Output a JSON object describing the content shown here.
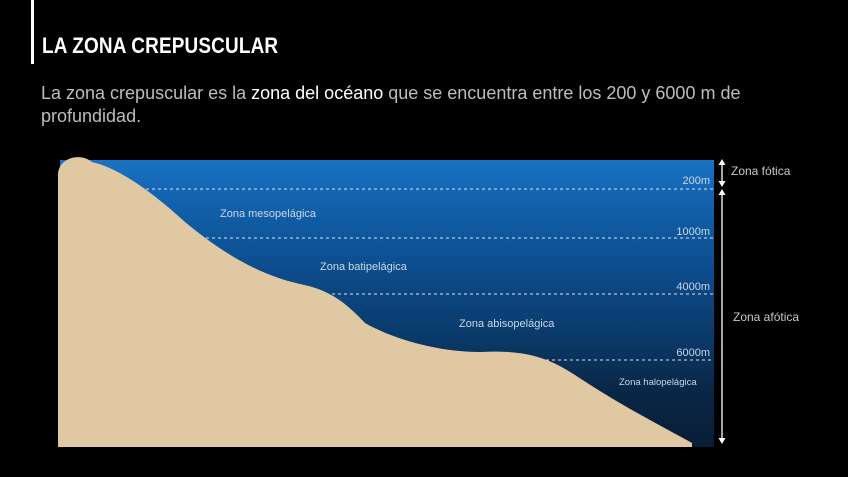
{
  "header": {
    "title": "LA ZONA CREPUSCULAR"
  },
  "intro": {
    "before": "La zona crepuscular es la ",
    "highlight": "zona del océano",
    "after": " que se encuentra entre los 200 y 6000 m de profundidad."
  },
  "diagram": {
    "zones": [
      {
        "name": "Zona mesopelágica",
        "color": "#0f5aa3"
      },
      {
        "name": "Zona batipelágica",
        "color": "#0b4682"
      },
      {
        "name": "Zona abisopelágica",
        "color": "#0a3261"
      },
      {
        "name": "Zona halopelágica",
        "color": "#0a2240"
      }
    ],
    "depth_lines": [
      {
        "label": "200m"
      },
      {
        "label": "1000m"
      },
      {
        "label": "4000m"
      },
      {
        "label": "6000m"
      }
    ],
    "side_labels": {
      "photic": "Zona fótica",
      "aphotic": "Zona afótica"
    },
    "colors": {
      "surface_water": "#1a73c4",
      "seabed": "#dfc8a2",
      "label_text": "#c9d8e8",
      "arrow": "#ffffff"
    }
  }
}
